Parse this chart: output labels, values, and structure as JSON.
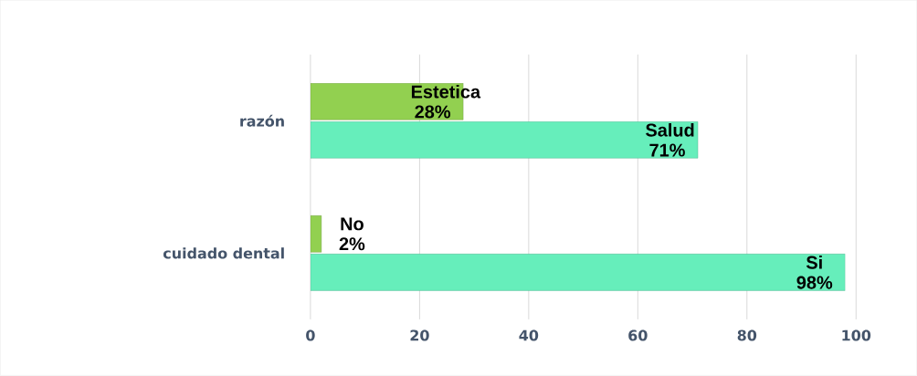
{
  "chart_data": {
    "type": "bar",
    "orientation": "horizontal",
    "categories": [
      "razón",
      "cuidado dental"
    ],
    "series": [
      {
        "color": "#92d050",
        "values": [
          28,
          2
        ],
        "value_labels": [
          "Estetica 28%",
          "No 2%"
        ]
      },
      {
        "color": "#66eebb",
        "values": [
          71,
          98
        ],
        "value_labels": [
          "Salud 71%",
          "Si 98%"
        ]
      }
    ],
    "xlim": [
      0,
      100
    ],
    "xticks": [
      0,
      20,
      40,
      60,
      80,
      100
    ],
    "grid": "x"
  }
}
